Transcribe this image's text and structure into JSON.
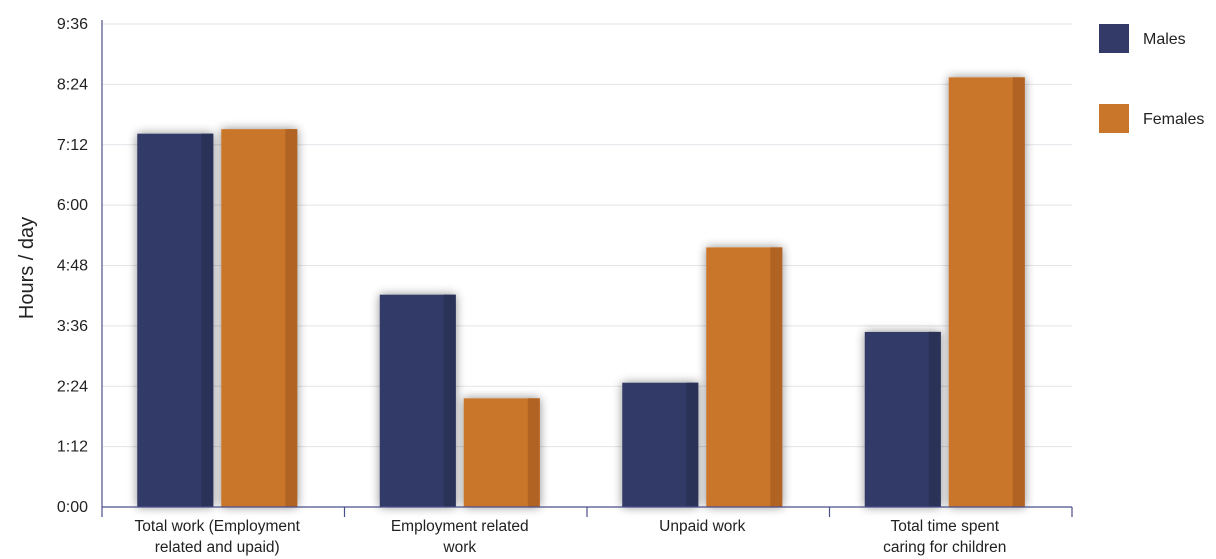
{
  "chart_data": {
    "type": "bar",
    "title": "",
    "xlabel": "",
    "ylabel": "Hours / day",
    "y_ticks": [
      "0:00",
      "1:12",
      "2:24",
      "3:36",
      "4:48",
      "6:00",
      "7:12",
      "8:24",
      "9:36"
    ],
    "ylim_hours": [
      0,
      9.6
    ],
    "grid": true,
    "legend_placement": "top-right",
    "categories": [
      [
        "Total work (Employment",
        "related and upaid)"
      ],
      [
        "Employment related",
        "work"
      ],
      [
        "Unpaid work"
      ],
      [
        "Total time spent",
        "caring for children"
      ]
    ],
    "series": [
      {
        "name": "Males",
        "color": "#333a68",
        "side_color": "#2b3159",
        "values_hours": [
          7.42,
          4.22,
          2.47,
          3.48
        ]
      },
      {
        "name": "Females",
        "color": "#c9762a",
        "side_color": "#b06320",
        "values_hours": [
          7.51,
          2.16,
          5.16,
          8.54
        ]
      }
    ]
  }
}
